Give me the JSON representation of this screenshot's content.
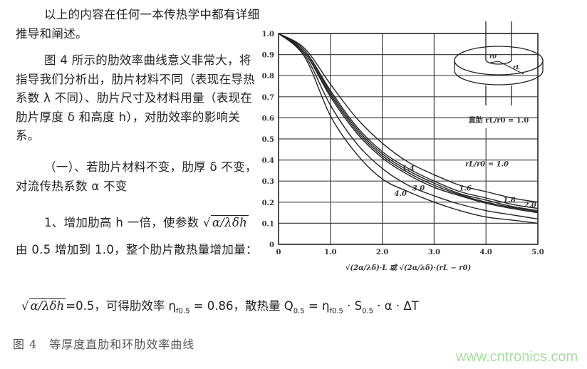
{
  "text": {
    "para1": "以上的内容在任何一本传热学中都有详细推导和阐述。",
    "para2": "图 4 所示的肋效率曲线意义非常大，将指导我们分析出，肋片材料不同（表现在导热系数 λ 不同）、肋片尺寸及材料用量（表现在肋片厚度 δ 和高度 h），对肋效率的影响关系。",
    "para3": "（一）、若肋片材料不变，肋厚 δ 不变，对流传热系数 α 不变",
    "para4_a": "1、增加肋高 h 一倍，使参数",
    "param_expr": "α/λδh",
    "para4_b": "由 0.5 增加到 1.0，整个肋片散热量增加量：",
    "formula_rest": "=0.5，可得肋效率 η",
    "eta_sub": "f0.5",
    "formula_eq": " = 0.86，散热量 Q",
    "q_sub": "0.5",
    "formula_eq2": " = η",
    "formula_tail_a": " · S",
    "s_sub": "0.5",
    "formula_tail_b": " · α · ΔT"
  },
  "caption": "图 4　等厚度直肋和环肋效率曲线",
  "watermark": "www.cntronics.com",
  "chart_data": {
    "type": "line",
    "xlim": [
      0,
      5.0
    ],
    "ylim": [
      0,
      1.0
    ],
    "x_ticks": [
      "0",
      "1.0",
      "2.0",
      "3.0",
      "4.0",
      "5.0"
    ],
    "y_ticks": [
      "0",
      "0.1",
      "0.2",
      "0.3",
      "0.4",
      "0.5",
      "0.6",
      "0.7",
      "0.8",
      "0.9",
      "1.0"
    ],
    "xlabel": "√(2α/λδ)·L 或 √(2α/λδ)·(rL − r0)",
    "grid": true,
    "inset_label": "直肋 rL/r0 = 1.0",
    "inset_r0": "r0",
    "inset_rL": "rL",
    "x": [
      0,
      0.5,
      1.0,
      1.5,
      2.0,
      2.5,
      3.0,
      3.5,
      4.0,
      4.5,
      5.0
    ],
    "series": [
      {
        "label": "rL/r0 = 1.0",
        "values": [
          1,
          0.93,
          0.76,
          0.6,
          0.48,
          0.39,
          0.33,
          0.28,
          0.25,
          0.22,
          0.2
        ]
      },
      {
        "label": "1.4",
        "values": [
          1,
          0.92,
          0.73,
          0.56,
          0.44,
          0.36,
          0.3,
          0.25,
          0.22,
          0.19,
          0.17
        ]
      },
      {
        "label": "1.6",
        "values": [
          1,
          0.92,
          0.72,
          0.55,
          0.43,
          0.35,
          0.29,
          0.24,
          0.21,
          0.18,
          0.16
        ]
      },
      {
        "label": "1.8",
        "values": [
          1,
          0.91,
          0.71,
          0.54,
          0.42,
          0.34,
          0.28,
          0.235,
          0.2,
          0.175,
          0.155
        ]
      },
      {
        "label": "2.0",
        "values": [
          1,
          0.91,
          0.7,
          0.53,
          0.41,
          0.33,
          0.27,
          0.23,
          0.195,
          0.17,
          0.15
        ]
      },
      {
        "label": "3.0",
        "values": [
          1,
          0.9,
          0.66,
          0.48,
          0.36,
          0.28,
          0.23,
          0.19,
          0.16,
          0.14,
          0.12
        ]
      },
      {
        "label": "4.0",
        "values": [
          1,
          0.89,
          0.61,
          0.43,
          0.31,
          0.25,
          0.2,
          0.16,
          0.13,
          0.115,
          0.1
        ]
      }
    ]
  }
}
